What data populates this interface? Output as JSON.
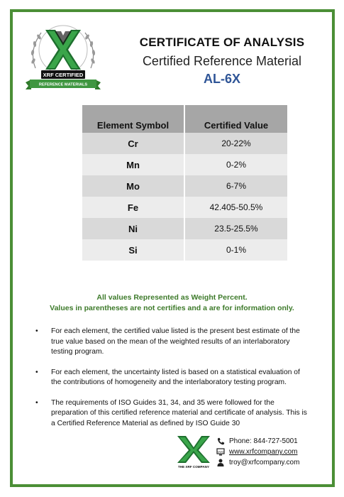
{
  "header": {
    "logo_badge_text": "XRF CERTIFIED",
    "logo_ribbon_text": "REFERENCE MATERIALS",
    "title": "CERTIFICATE OF ANALYSIS",
    "subtitle": "Certified Reference Material",
    "code": "AL-6X"
  },
  "table": {
    "headers": [
      "Element Symbol",
      "Certified Value"
    ],
    "rows": [
      {
        "symbol": "Cr",
        "value": "20-22%"
      },
      {
        "symbol": "Mn",
        "value": "0-2%"
      },
      {
        "symbol": "Mo",
        "value": "6-7%"
      },
      {
        "symbol": "Fe",
        "value": "42.405-50.5%"
      },
      {
        "symbol": "Ni",
        "value": "23.5-25.5%"
      },
      {
        "symbol": "Si",
        "value": "0-1%"
      }
    ]
  },
  "notes": {
    "line1": "All values Represented as Weight Percent.",
    "line2": "Values in parentheses are not certifies and a are for information only."
  },
  "bullets": [
    "For each element, the certified value listed is the present best estimate of the true value based on the mean of the weighted results of an interlaboratory testing program.",
    "For each element, the uncertainty listed is based on a statistical evaluation of the contributions of homogeneity and the interlaboratory testing program.",
    "The requirements of ISO Guides 31, 34, and 35 were followed for the preparation of this certified reference material and certificate of analysis. This is a Certified Reference Material as defined by ISO Guide 30"
  ],
  "footer": {
    "logo_text": "THE XRF COMPANY",
    "phone": "Phone: 844-727-5001",
    "website": "www.xrfcompany.com",
    "email": "troy@xrfcompany.com"
  },
  "colors": {
    "border_green": "#4b8f36",
    "code_blue": "#2f5597",
    "note_green": "#3d7a2a",
    "header_gray": "#a6a6a6",
    "row_gray": "#d9d9d9"
  },
  "icons": [
    "phone-icon",
    "web-icon",
    "person-icon"
  ]
}
